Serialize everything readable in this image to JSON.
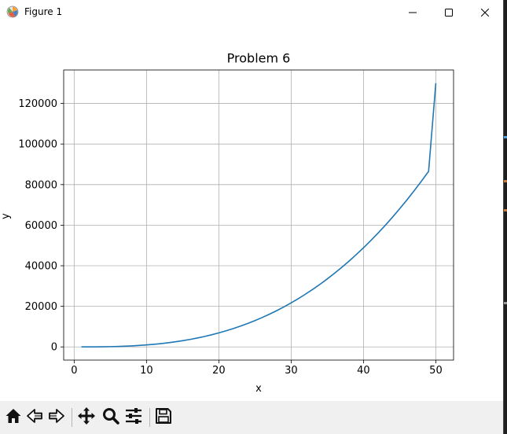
{
  "window": {
    "title": "Figure 1",
    "controls": [
      "minimize-icon",
      "maximize-icon",
      "close-icon"
    ]
  },
  "toolbar": {
    "buttons": [
      "home-icon",
      "back-icon",
      "forward-icon",
      "pan-icon",
      "zoom-icon",
      "configure-subplots-icon",
      "save-icon"
    ]
  },
  "chart_data": {
    "type": "line",
    "title": "Problem 6",
    "xlabel": "x",
    "ylabel": "y",
    "xlim": [
      -1.45,
      52.45
    ],
    "ylim": [
      -6500,
      136500
    ],
    "xticks": [
      0,
      10,
      20,
      30,
      40,
      50
    ],
    "yticks": [
      0,
      20000,
      40000,
      60000,
      80000,
      100000,
      120000
    ],
    "grid": true,
    "line_color": "#1f77b4",
    "series": [
      {
        "x": [
          1,
          2,
          3,
          4,
          5,
          6,
          7,
          8,
          9,
          10,
          11,
          12,
          13,
          14,
          15,
          16,
          17,
          18,
          19,
          20,
          21,
          22,
          23,
          24,
          25,
          26,
          27,
          28,
          29,
          30,
          31,
          32,
          33,
          34,
          35,
          36,
          37,
          38,
          39,
          40,
          41,
          42,
          43,
          44,
          45,
          46,
          47,
          48,
          49,
          50
        ],
        "y": [
          1,
          9,
          32,
          72,
          136,
          229,
          354,
          518,
          723,
          974,
          1276,
          1632,
          2046,
          2523,
          3066,
          3679,
          4366,
          5131,
          5978,
          6910,
          7931,
          9044,
          10254,
          11564,
          12977,
          14497,
          16127,
          17871,
          19732,
          21713,
          23817,
          26048,
          28410,
          30905,
          33537,
          36309,
          39224,
          42286,
          45498,
          48862,
          52382,
          56062,
          59904,
          63911,
          68087,
          72434,
          76956,
          81656,
          86536,
          130000
        ]
      }
    ]
  }
}
